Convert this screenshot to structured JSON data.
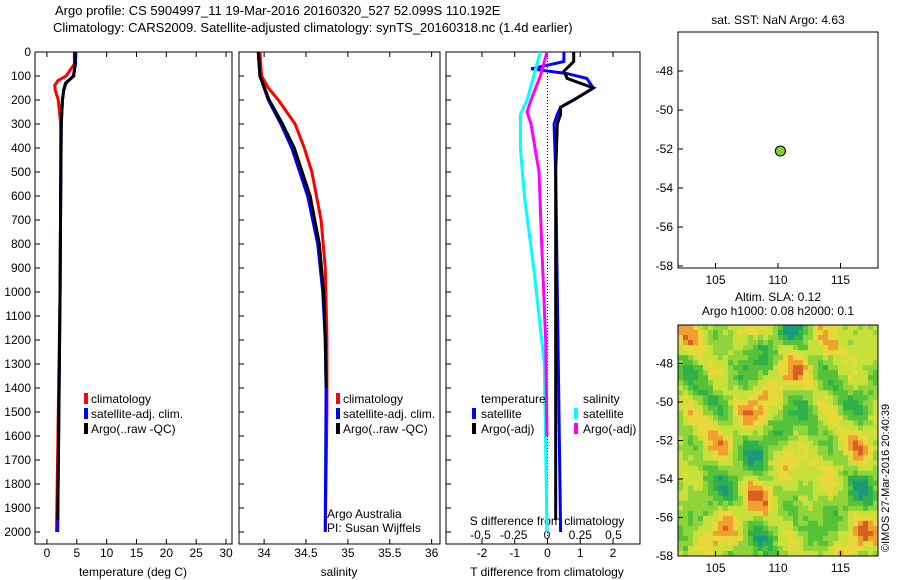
{
  "title_line1": "Argo profile: CS 5904997_11 19-Mar-2016 20160320_527 52.099S 110.192E",
  "title_line2": "Climatology: CARS2009. Satellite-adjusted climatology: synTS_20160318.nc (1.4d earlier)",
  "credit": "©IMOS 27-Mar-2016 20:40:39",
  "colors": {
    "climatology": "#ff0000",
    "satellite": "#0000ff",
    "argo": "#000000",
    "s_satellite": "#00ffff",
    "s_argo": "#ff00ff",
    "dot": "#7fd13b"
  },
  "chart_data": [
    {
      "type": "line",
      "id": "temp",
      "xlabel": "temperature (deg C)",
      "ylabel": "depth",
      "xlim": [
        -2,
        31
      ],
      "ylim": [
        2050,
        0
      ],
      "xticks": [
        0,
        5,
        10,
        15,
        20,
        25,
        30
      ],
      "yticks": [
        0,
        100,
        200,
        300,
        400,
        500,
        600,
        700,
        800,
        900,
        1000,
        1100,
        1200,
        1300,
        1400,
        1500,
        1600,
        1700,
        1800,
        1900,
        2000
      ],
      "legend": [
        "climatology",
        "satellite-adj. clim.",
        "Argo(..raw -QC)"
      ],
      "series": [
        {
          "name": "climatology",
          "color": "#ff0000",
          "depth": [
            0,
            50,
            100,
            120,
            140,
            160,
            200,
            300,
            600,
            1000,
            1500,
            2000
          ],
          "values": [
            4.6,
            4.6,
            3.2,
            1.8,
            1.3,
            1.4,
            1.9,
            2.3,
            2.3,
            2.2,
            1.9,
            1.6
          ]
        },
        {
          "name": "satellite-adj. clim.",
          "color": "#0000ff",
          "depth": [
            0,
            50,
            100,
            130,
            160,
            200,
            300,
            600,
            1000,
            1500,
            2000
          ],
          "values": [
            4.8,
            4.8,
            4.4,
            3.2,
            2.8,
            2.6,
            2.4,
            2.3,
            2.2,
            2.0,
            1.8
          ]
        },
        {
          "name": "Argo(..raw -QC)",
          "color": "#000000",
          "depth": [
            0,
            50,
            100,
            130,
            160,
            200,
            300,
            600,
            1000,
            1500,
            1950
          ],
          "values": [
            4.7,
            4.7,
            4.5,
            3.1,
            2.8,
            2.6,
            2.4,
            2.3,
            2.2,
            2.0,
            1.8
          ]
        }
      ]
    },
    {
      "type": "line",
      "id": "sal",
      "xlabel": "salinity",
      "xlim": [
        33.7,
        36.1
      ],
      "ylim": [
        2050,
        0
      ],
      "xticks": [
        34,
        34.5,
        35,
        35.5,
        36
      ],
      "legend": [
        "climatology",
        "satellite-adj. clim.",
        "Argo(..raw -QC)"
      ],
      "annotation": [
        "Argo Australia",
        "PI: Susan Wijffels"
      ],
      "series": [
        {
          "name": "climatology",
          "color": "#ff0000",
          "depth": [
            0,
            100,
            150,
            200,
            300,
            400,
            500,
            700,
            900,
            1200,
            1500,
            2000
          ],
          "values": [
            33.95,
            33.97,
            34.05,
            34.17,
            34.37,
            34.48,
            34.57,
            34.68,
            34.73,
            34.75,
            34.75,
            34.73
          ]
        },
        {
          "name": "satellite-adj. clim.",
          "color": "#0000ff",
          "depth": [
            0,
            100,
            200,
            300,
            400,
            600,
            800,
            1000,
            1200,
            1400,
            2000
          ],
          "values": [
            33.93,
            33.95,
            34.05,
            34.2,
            34.33,
            34.52,
            34.64,
            34.7,
            34.73,
            34.74,
            34.73
          ]
        },
        {
          "name": "Argo(..raw -QC)",
          "color": "#000000",
          "depth": [
            0,
            100,
            200,
            300,
            400,
            600,
            800,
            1000,
            1200,
            1400
          ],
          "values": [
            33.93,
            33.95,
            34.06,
            34.22,
            34.36,
            34.55,
            34.66,
            34.71,
            34.73,
            34.74
          ]
        }
      ]
    },
    {
      "type": "line",
      "id": "diff",
      "xlabel": "T difference from climatology",
      "x2label": "S difference from climatology",
      "xlim": [
        -3,
        3
      ],
      "ylim": [
        2050,
        0
      ],
      "xticks": [
        -2,
        -1,
        0,
        1,
        2
      ],
      "x2ticks": [
        -0.5,
        -0.25,
        0,
        0.25,
        0.5
      ],
      "legend_titles": [
        "temperature",
        "salinity"
      ],
      "legend": [
        "satellite",
        "Argo(-adj)",
        "satellite",
        "Argo(-adj)"
      ],
      "series": [
        {
          "name": "T satellite",
          "axis": "T",
          "color": "#0000ff",
          "depth": [
            0,
            40,
            70,
            90,
            110,
            150,
            200,
            230,
            260,
            300,
            500,
            1000,
            1500,
            2000
          ],
          "values": [
            0.5,
            0.5,
            -0.5,
            0.6,
            1.2,
            1.4,
            0.8,
            0.4,
            0.3,
            0.2,
            0.25,
            0.3,
            0.35,
            0.4
          ]
        },
        {
          "name": "T Argo(-adj)",
          "axis": "T",
          "color": "#000000",
          "depth": [
            0,
            40,
            80,
            110,
            150,
            200,
            230,
            260,
            300,
            500,
            1000,
            1500,
            1950
          ],
          "values": [
            0.8,
            0.8,
            0.5,
            0.6,
            1.4,
            0.8,
            0.4,
            0.4,
            0.3,
            0.25,
            0.25,
            0.25,
            0.25
          ]
        },
        {
          "name": "S satellite",
          "axis": "S",
          "color": "#00ffff",
          "depth": [
            0,
            100,
            200,
            260,
            400,
            600,
            900,
            1300,
            2000
          ],
          "values": [
            -0.05,
            -0.1,
            -0.15,
            -0.2,
            -0.2,
            -0.17,
            -0.1,
            -0.02,
            0.0
          ]
        },
        {
          "name": "S Argo(-adj)",
          "axis": "S",
          "color": "#ff00ff",
          "depth": [
            0,
            100,
            200,
            250,
            300,
            500,
            800,
            1200,
            1600
          ],
          "values": [
            0.0,
            -0.05,
            -0.12,
            -0.15,
            -0.12,
            -0.06,
            -0.04,
            -0.01,
            0.0
          ]
        }
      ]
    },
    {
      "type": "scatter",
      "id": "loc",
      "title": "sat. SST: NaN Argo: 4.63",
      "xlim": [
        102,
        118
      ],
      "ylim": [
        -58,
        -46
      ],
      "xticks": [
        105,
        110,
        115
      ],
      "yticks": [
        -48,
        -50,
        -52,
        -54,
        -56,
        -58
      ],
      "points": [
        {
          "x": 110.19,
          "y": -52.1
        }
      ]
    },
    {
      "type": "heatmap",
      "id": "sla",
      "title1": "Altim. SLA: 0.12",
      "title2": "Argo h1000: 0.08 h2000: 0.1",
      "xlim": [
        102,
        118
      ],
      "ylim": [
        -58,
        -46
      ],
      "xticks": [
        105,
        110,
        115
      ],
      "yticks": [
        -48,
        -50,
        -52,
        -54,
        -56,
        -58
      ],
      "palette": [
        "#1a9a7a",
        "#2fb04a",
        "#55c23a",
        "#8fd43a",
        "#c8e03a",
        "#e8d83a",
        "#f0a030",
        "#d86020"
      ]
    }
  ]
}
